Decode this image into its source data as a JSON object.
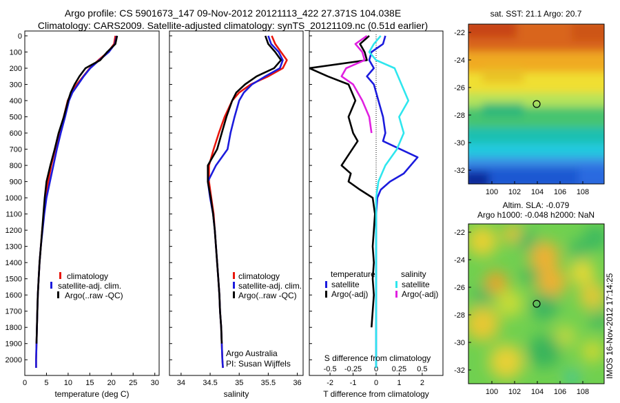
{
  "header": {
    "line1": "Argo profile: CS 5901673_147 09-Nov-2012 20121113_422 27.371S 104.038E",
    "line2": "Climatology: CARS2009. Satellite-adjusted climatology: synTS_20121109.nc (0.51d earlier)"
  },
  "maps": {
    "top_title": "sat. SST: 21.1 Argo: 20.7",
    "bottom_title_1": "Altim. SLA: -0.079",
    "bottom_title_2": "Argo h1000: -0.048 h2000: NaN"
  },
  "stamp": "IMOS 16-Nov-2012 17:14:25",
  "annotations": {
    "argo_australia": "Argo Australia",
    "pi": "PI: Susan Wijffels"
  },
  "colors": {
    "climatology": "#e8160c",
    "satellite": "#1b1bdd",
    "argo": "#000000",
    "sat_salinity": "#2ee6ee",
    "argo_salinity": "#e020e0"
  },
  "chart_data": [
    {
      "type": "line",
      "panel": "temperature",
      "xlabel": "temperature (deg C)",
      "xlim": [
        0,
        31
      ],
      "xticks": [
        "0",
        "5",
        "10",
        "15",
        "20",
        "25",
        "30"
      ],
      "ylim": [
        0,
        2050
      ],
      "yticks": [
        "0",
        "100",
        "200",
        "300",
        "400",
        "500",
        "600",
        "700",
        "800",
        "900",
        "1000",
        "1100",
        "1200",
        "1300",
        "1400",
        "1500",
        "1600",
        "1700",
        "1800",
        "1900",
        "2000"
      ],
      "legend": [
        "climatology",
        "satellite-adj. clim.",
        "Argo(..raw -QC)"
      ],
      "series": [
        {
          "name": "climatology",
          "color": "climatology",
          "points": [
            [
              20.9,
              0
            ],
            [
              20.6,
              50
            ],
            [
              19.2,
              100
            ],
            [
              17,
              150
            ],
            [
              15,
              200
            ],
            [
              13.5,
              250
            ],
            [
              12,
              300
            ],
            [
              10.8,
              350
            ],
            [
              9.9,
              400
            ],
            [
              9,
              500
            ],
            [
              8,
              600
            ],
            [
              7,
              700
            ],
            [
              6.1,
              800
            ],
            [
              5.4,
              900
            ],
            [
              4.8,
              1000
            ],
            [
              4.4,
              1100
            ],
            [
              4,
              1200
            ],
            [
              3.7,
              1300
            ],
            [
              3.4,
              1400
            ],
            [
              3.2,
              1500
            ],
            [
              3,
              1600
            ],
            [
              2.9,
              1700
            ],
            [
              2.8,
              1800
            ],
            [
              2.7,
              1900
            ],
            [
              2.6,
              2000
            ],
            [
              2.6,
              2050
            ]
          ]
        },
        {
          "name": "satellite-adj. clim.",
          "color": "satellite",
          "points": [
            [
              21.2,
              0
            ],
            [
              20.8,
              50
            ],
            [
              19.4,
              100
            ],
            [
              17.2,
              150
            ],
            [
              15.1,
              200
            ],
            [
              13.6,
              250
            ],
            [
              12.3,
              300
            ],
            [
              11,
              350
            ],
            [
              10.2,
              400
            ],
            [
              9.3,
              500
            ],
            [
              8.3,
              600
            ],
            [
              7.4,
              700
            ],
            [
              6.6,
              800
            ],
            [
              5.8,
              900
            ],
            [
              5,
              1000
            ],
            [
              4.5,
              1100
            ],
            [
              4.1,
              1200
            ],
            [
              3.7,
              1300
            ],
            [
              3.4,
              1400
            ],
            [
              3.2,
              1500
            ],
            [
              3,
              1600
            ],
            [
              2.9,
              1700
            ],
            [
              2.8,
              1800
            ],
            [
              2.7,
              1900
            ],
            [
              2.6,
              2000
            ],
            [
              2.6,
              2050
            ]
          ]
        },
        {
          "name": "Argo(..raw -QC)",
          "color": "argo",
          "points": [
            [
              21.3,
              0
            ],
            [
              20.9,
              50
            ],
            [
              19,
              100
            ],
            [
              17.4,
              150
            ],
            [
              14,
              200
            ],
            [
              12.6,
              250
            ],
            [
              11.5,
              300
            ],
            [
              10.6,
              350
            ],
            [
              10,
              400
            ],
            [
              9,
              500
            ],
            [
              7.8,
              600
            ],
            [
              6.9,
              700
            ],
            [
              5.9,
              800
            ],
            [
              5,
              900
            ],
            [
              4.6,
              1000
            ],
            [
              4.3,
              1100
            ],
            [
              4,
              1200
            ],
            [
              3.7,
              1300
            ],
            [
              3.4,
              1400
            ],
            [
              3.2,
              1500
            ],
            [
              3,
              1600
            ],
            [
              2.9,
              1700
            ],
            [
              2.8,
              1800
            ],
            [
              2.7,
              1900
            ]
          ]
        }
      ]
    },
    {
      "type": "line",
      "panel": "salinity",
      "xlabel": "salinity",
      "xlim": [
        33.8,
        36.1
      ],
      "xticks": [
        "34",
        "34.5",
        "35",
        "35.5",
        "36"
      ],
      "ylim": [
        0,
        2050
      ],
      "legend": [
        "climatology",
        "satellite-adj. clim.",
        "Argo(..raw -QC)"
      ],
      "series": [
        {
          "name": "climatology",
          "color": "climatology",
          "points": [
            [
              35.56,
              0
            ],
            [
              35.62,
              50
            ],
            [
              35.72,
              100
            ],
            [
              35.82,
              150
            ],
            [
              35.75,
              200
            ],
            [
              35.5,
              250
            ],
            [
              35.2,
              300
            ],
            [
              35,
              350
            ],
            [
              34.88,
              400
            ],
            [
              34.75,
              500
            ],
            [
              34.65,
              600
            ],
            [
              34.56,
              700
            ],
            [
              34.48,
              800
            ],
            [
              34.48,
              900
            ],
            [
              34.52,
              1000
            ],
            [
              34.56,
              1100
            ],
            [
              34.58,
              1200
            ],
            [
              34.6,
              1300
            ],
            [
              34.62,
              1400
            ],
            [
              34.64,
              1500
            ],
            [
              34.66,
              1600
            ],
            [
              34.67,
              1700
            ],
            [
              34.69,
              1800
            ],
            [
              34.7,
              1900
            ],
            [
              34.71,
              2000
            ],
            [
              34.72,
              2050
            ]
          ]
        },
        {
          "name": "satellite-adj. clim.",
          "color": "satellite",
          "points": [
            [
              35.5,
              0
            ],
            [
              35.55,
              50
            ],
            [
              35.68,
              100
            ],
            [
              35.75,
              150
            ],
            [
              35.7,
              200
            ],
            [
              35.45,
              250
            ],
            [
              35.22,
              300
            ],
            [
              35.08,
              350
            ],
            [
              35,
              400
            ],
            [
              34.92,
              500
            ],
            [
              34.85,
              600
            ],
            [
              34.8,
              700
            ],
            [
              34.6,
              800
            ],
            [
              34.46,
              900
            ],
            [
              34.5,
              1000
            ],
            [
              34.55,
              1100
            ],
            [
              34.58,
              1200
            ],
            [
              34.6,
              1300
            ],
            [
              34.62,
              1400
            ],
            [
              34.64,
              1500
            ],
            [
              34.66,
              1600
            ],
            [
              34.67,
              1700
            ],
            [
              34.69,
              1800
            ],
            [
              34.7,
              1900
            ],
            [
              34.71,
              2000
            ],
            [
              34.72,
              2050
            ]
          ]
        },
        {
          "name": "Argo(..raw -QC)",
          "color": "argo",
          "points": [
            [
              35.45,
              0
            ],
            [
              35.5,
              50
            ],
            [
              35.62,
              100
            ],
            [
              35.72,
              150
            ],
            [
              35.6,
              200
            ],
            [
              35.3,
              250
            ],
            [
              35.1,
              300
            ],
            [
              34.95,
              350
            ],
            [
              34.88,
              400
            ],
            [
              34.78,
              500
            ],
            [
              34.7,
              600
            ],
            [
              34.62,
              700
            ],
            [
              34.46,
              800
            ],
            [
              34.46,
              900
            ],
            [
              34.51,
              1000
            ],
            [
              34.55,
              1100
            ],
            [
              34.58,
              1200
            ],
            [
              34.6,
              1300
            ],
            [
              34.62,
              1400
            ],
            [
              34.64,
              1500
            ],
            [
              34.66,
              1600
            ],
            [
              34.67,
              1700
            ],
            [
              34.69,
              1800
            ],
            [
              34.7,
              1900
            ]
          ]
        }
      ]
    },
    {
      "type": "line",
      "panel": "difference",
      "xlabel": "T difference from climatology",
      "top_label": "S difference from climatology",
      "xlim": [
        -2.9,
        2.9
      ],
      "xticks": [
        "-2",
        "-1",
        "0",
        "1",
        "2"
      ],
      "s_xticks": [
        [
          "-0.5",
          -2
        ],
        [
          "-0.25",
          -1
        ],
        [
          "0",
          0
        ],
        [
          "0.25",
          1
        ],
        [
          "0.5",
          2
        ]
      ],
      "ylim": [
        0,
        2050
      ],
      "legend": {
        "temperature_title": "temperature",
        "salinity_title": "salinity",
        "entries": [
          "satellite",
          "Argo(-adj)",
          "satellite",
          "Argo(-adj)"
        ]
      },
      "series": [
        {
          "name": "satellite",
          "color": "satellite",
          "points": [
            [
              0.4,
              0
            ],
            [
              0.3,
              50
            ],
            [
              -0.2,
              100
            ],
            [
              -0.3,
              150
            ],
            [
              -0.1,
              200
            ],
            [
              -0.4,
              250
            ],
            [
              -0.1,
              300
            ],
            [
              0.1,
              400
            ],
            [
              0.3,
              500
            ],
            [
              0.4,
              600
            ],
            [
              0.3,
              650
            ],
            [
              1.8,
              750
            ],
            [
              1.2,
              850
            ],
            [
              0.6,
              900
            ],
            [
              0.2,
              950
            ],
            [
              0.05,
              1000
            ],
            [
              0,
              1100
            ],
            [
              0,
              1200
            ],
            [
              0,
              1300
            ],
            [
              0,
              1400
            ],
            [
              0,
              1500
            ],
            [
              0,
              1600
            ],
            [
              0,
              1700
            ],
            [
              0,
              1800
            ],
            [
              0,
              1900
            ],
            [
              0,
              2000
            ],
            [
              0,
              2050
            ]
          ]
        },
        {
          "name": "Argo(-adj)",
          "color": "argo",
          "points": [
            [
              -0.3,
              0
            ],
            [
              -0.7,
              50
            ],
            [
              -0.5,
              100
            ],
            [
              -0.4,
              150
            ],
            [
              -2.9,
              200
            ],
            [
              -2.1,
              250
            ],
            [
              -1.2,
              300
            ],
            [
              -0.9,
              400
            ],
            [
              -1.2,
              500
            ],
            [
              -1.0,
              600
            ],
            [
              -0.8,
              650
            ],
            [
              -1.5,
              800
            ],
            [
              -1.1,
              850
            ],
            [
              -1.2,
              900
            ],
            [
              -0.7,
              950
            ],
            [
              -0.15,
              1000
            ],
            [
              -0.05,
              1100
            ],
            [
              -0.1,
              1200
            ],
            [
              -0.15,
              1300
            ],
            [
              -0.1,
              1400
            ],
            [
              -0.15,
              1500
            ],
            [
              -0.1,
              1600
            ],
            [
              -0.15,
              1700
            ],
            [
              -0.2,
              1800
            ]
          ]
        },
        {
          "name": "satellite",
          "color": "sat_salinity",
          "points": [
            [
              0.2,
              0
            ],
            [
              -0.1,
              50
            ],
            [
              -0.3,
              100
            ],
            [
              0,
              150
            ],
            [
              0.8,
              200
            ],
            [
              1.1,
              300
            ],
            [
              1.4,
              400
            ],
            [
              1.0,
              500
            ],
            [
              1.2,
              600
            ],
            [
              0.9,
              700
            ],
            [
              0.4,
              800
            ],
            [
              0.1,
              900
            ],
            [
              0,
              1000
            ],
            [
              0,
              1200
            ],
            [
              0,
              1400
            ],
            [
              0,
              1600
            ],
            [
              0,
              1800
            ],
            [
              0,
              2000
            ],
            [
              0,
              2050
            ]
          ]
        },
        {
          "name": "Argo(-adj)",
          "color": "argo_salinity",
          "points": [
            [
              -0.4,
              0
            ],
            [
              -0.9,
              50
            ],
            [
              -0.6,
              100
            ],
            [
              -0.5,
              150
            ],
            [
              -1.3,
              200
            ],
            [
              -1.5,
              250
            ],
            [
              -1.0,
              300
            ],
            [
              -0.6,
              400
            ],
            [
              -0.3,
              500
            ],
            [
              -0.2,
              600
            ]
          ]
        }
      ]
    }
  ],
  "map_axes": {
    "lat_ticks": [
      "-22",
      "-24",
      "-26",
      "-28",
      "-30",
      "-32"
    ],
    "lon_ticks": [
      "100",
      "102",
      "104",
      "106",
      "108"
    ]
  }
}
